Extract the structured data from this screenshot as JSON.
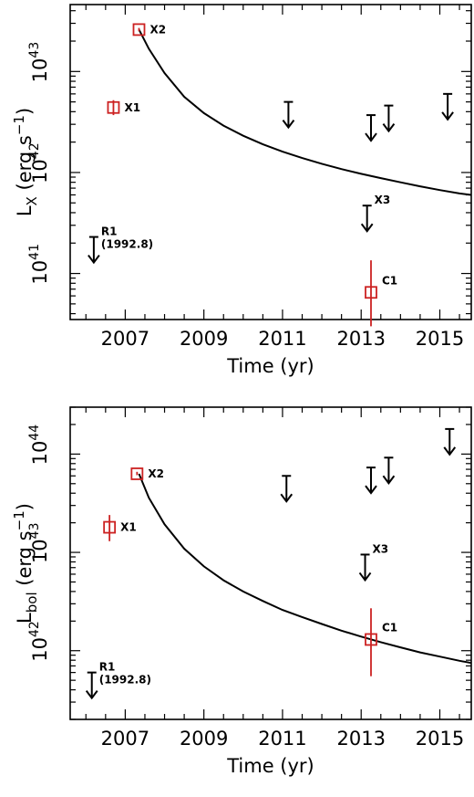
{
  "chart_data": [
    {
      "type": "scatter",
      "xlabel": "Time (yr)",
      "ylabel": "L_X (erg s^-1)",
      "ylabel_parts": {
        "main": "L",
        "sub": "X",
        "rest": " (erg s",
        "sup": "−1",
        "close": ")"
      },
      "yscale": "log",
      "xlim": [
        2005.6,
        2015.8
      ],
      "ylim": [
        3.5e+40,
        4.6e+43
      ],
      "xticks": [
        2007,
        2009,
        2011,
        2013,
        2015
      ],
      "xtick_labels": [
        "2007",
        "2009",
        "2011",
        "2013",
        "2015"
      ],
      "yticks": [
        1e+41,
        1e+42,
        1e+43
      ],
      "ytick_labels": [
        {
          "base": "10",
          "exp": "41"
        },
        {
          "base": "10",
          "exp": "42"
        },
        {
          "base": "10",
          "exp": "43"
        }
      ],
      "detections": [
        {
          "label": "X1",
          "x": 2006.7,
          "y": 4.4e+42,
          "yerr_lo": 3.7e+42,
          "yerr_hi": 5.2e+42
        },
        {
          "label": "X2",
          "x": 2007.35,
          "y": 2.6e+43,
          "yerr_lo": 2.5e+43,
          "yerr_hi": 2.7e+43
        },
        {
          "label": "C1",
          "x": 2013.25,
          "y": 6.5e+40,
          "yerr_lo": 3e+40,
          "yerr_hi": 1.35e+41
        }
      ],
      "upper_limits": [
        {
          "label": "R1",
          "sublabel": "(1992.8)",
          "x": 2006.2,
          "y": 2.3e+41
        },
        {
          "x": 2011.15,
          "y": 5e+42
        },
        {
          "label": "X3",
          "x": 2013.15,
          "y": 4.7e+41
        },
        {
          "x": 2013.25,
          "y": 3.7e+42
        },
        {
          "x": 2013.7,
          "y": 4.6e+42
        },
        {
          "x": 2015.2,
          "y": 6e+42
        }
      ],
      "model_curve": {
        "x": [
          2007.35,
          2007.6,
          2008.0,
          2008.5,
          2009.0,
          2009.5,
          2010.0,
          2010.5,
          2011.0,
          2011.5,
          2012.0,
          2012.5,
          2013.0,
          2013.5,
          2014.0,
          2014.5,
          2015.0,
          2015.5,
          2015.8
        ],
        "y": [
          2.6e+43,
          1.68e+43,
          9.66e+42,
          5.62e+42,
          3.87e+42,
          2.91e+42,
          2.31e+42,
          1.9e+42,
          1.61e+42,
          1.39e+42,
          1.22e+42,
          1.08e+42,
          9.7e+41,
          8.8e+41,
          8e+41,
          7.3e+41,
          6.7e+41,
          6.2e+41,
          6e+41
        ]
      }
    },
    {
      "type": "scatter",
      "xlabel": "Time (yr)",
      "ylabel": "L_bol (erg s^-1)",
      "ylabel_parts": {
        "main": "L",
        "sub": "bol",
        "rest": " (erg s",
        "sup": "−1",
        "close": ")"
      },
      "yscale": "log",
      "xlim": [
        2005.6,
        2015.8
      ],
      "ylim": [
        2e+41,
        3e+44
      ],
      "xticks": [
        2007,
        2009,
        2011,
        2013,
        2015
      ],
      "xtick_labels": [
        "2007",
        "2009",
        "2011",
        "2013",
        "2015"
      ],
      "yticks": [
        1e+42,
        1e+43,
        1e+44
      ],
      "ytick_labels": [
        {
          "base": "10",
          "exp": "42"
        },
        {
          "base": "10",
          "exp": "43"
        },
        {
          "base": "10",
          "exp": "44"
        }
      ],
      "detections": [
        {
          "label": "X1",
          "x": 2006.6,
          "y": 1.8e+43,
          "yerr_lo": 1.3e+43,
          "yerr_hi": 2.4e+43
        },
        {
          "label": "X2",
          "x": 2007.3,
          "y": 6.3e+43,
          "yerr_lo": 6.1e+43,
          "yerr_hi": 6.6e+43
        },
        {
          "label": "C1",
          "x": 2013.25,
          "y": 1.3e+42,
          "yerr_lo": 5.5e+41,
          "yerr_hi": 2.7e+42
        }
      ],
      "upper_limits": [
        {
          "label": "R1",
          "sublabel": "(1992.8)",
          "x": 2006.15,
          "y": 6e+41
        },
        {
          "x": 2011.1,
          "y": 6e+43
        },
        {
          "label": "X3",
          "x": 2013.1,
          "y": 9.5e+42
        },
        {
          "x": 2013.25,
          "y": 7.3e+43
        },
        {
          "x": 2013.7,
          "y": 9.2e+43
        },
        {
          "x": 2015.25,
          "y": 1.8e+44
        }
      ],
      "model_curve": {
        "x": [
          2007.35,
          2007.6,
          2008.0,
          2008.5,
          2009.0,
          2009.5,
          2010.0,
          2010.5,
          2011.0,
          2011.5,
          2012.0,
          2012.5,
          2013.0,
          2013.5,
          2014.0,
          2014.5,
          2015.0,
          2015.5,
          2015.8
        ],
        "y": [
          6.3e+43,
          3.6e+43,
          1.93e+43,
          1.09e+43,
          7.2e+42,
          5.2e+42,
          4e+42,
          3.2e+42,
          2.6e+42,
          2.2e+42,
          1.87e+42,
          1.6e+42,
          1.39e+42,
          1.22e+42,
          1.08e+42,
          9.6e+41,
          8.7e+41,
          7.9e+41,
          7.5e+41
        ]
      }
    }
  ]
}
